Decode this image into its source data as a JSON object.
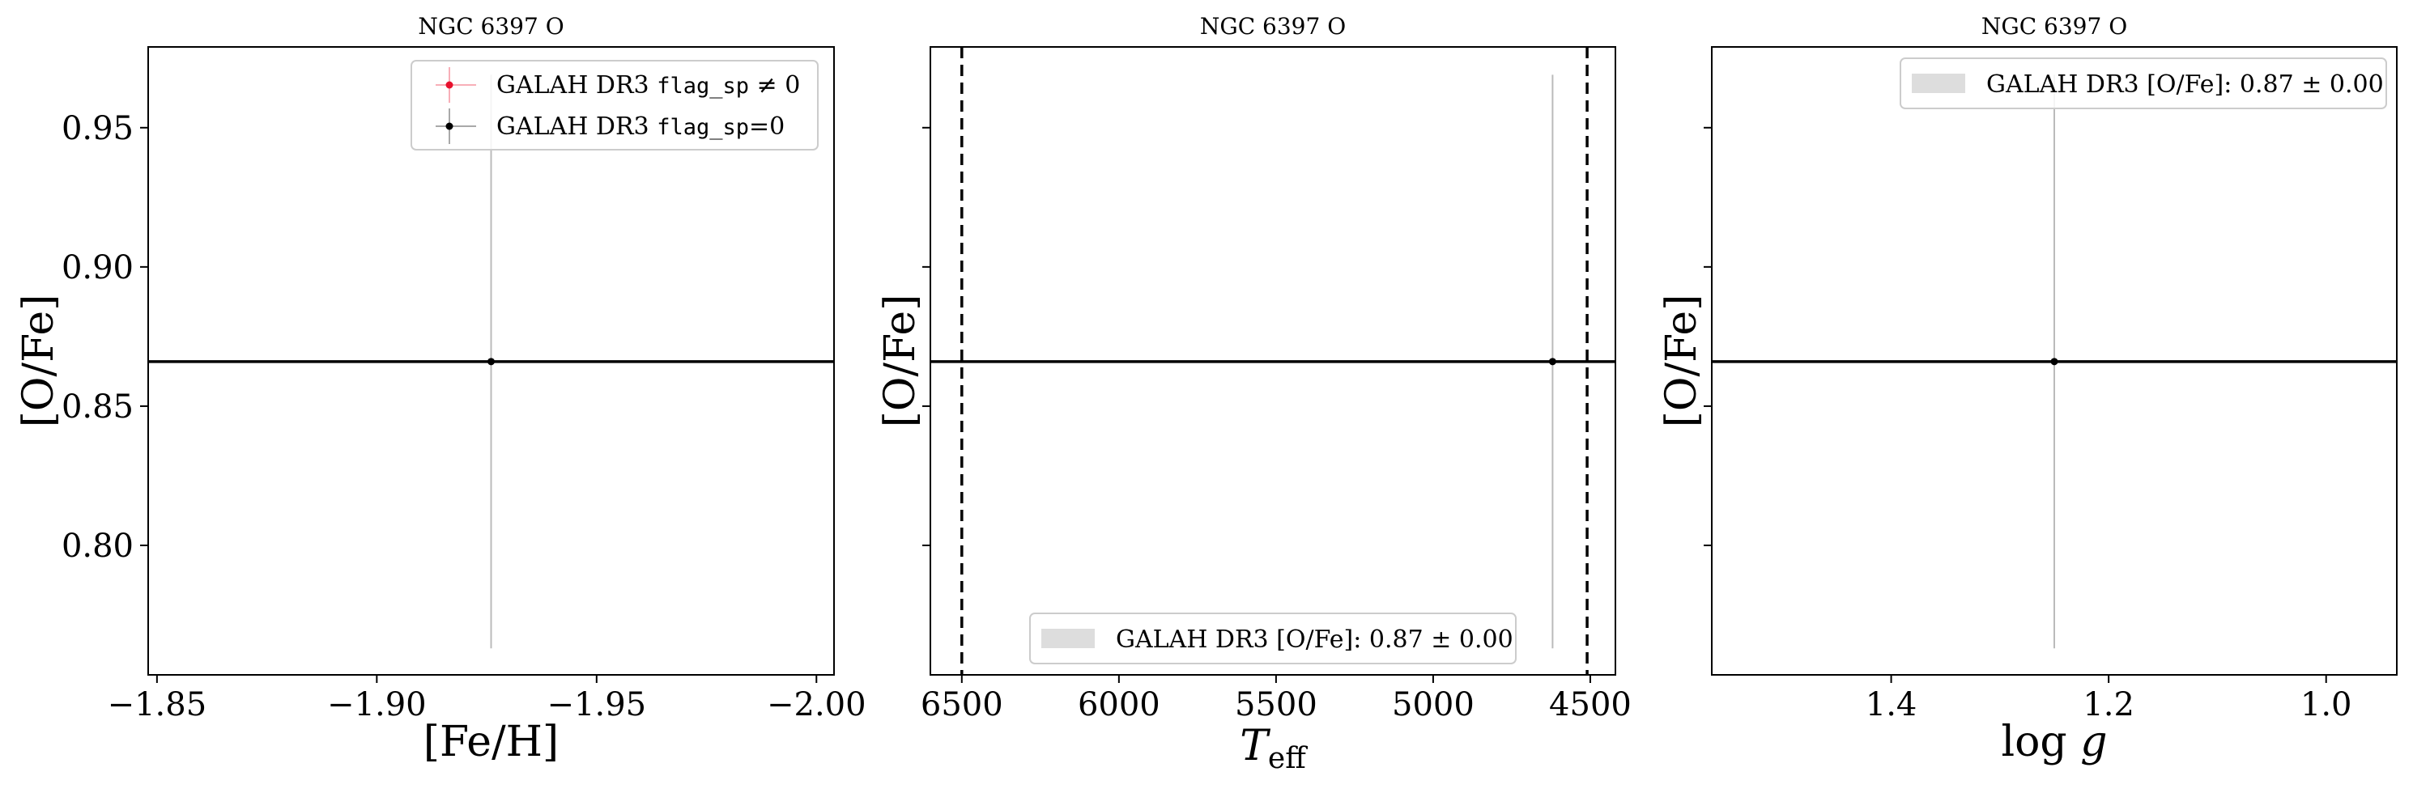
{
  "chart_data": [
    {
      "type": "scatter",
      "title": "NGC 6397 O",
      "xlabel": "[Fe/H]",
      "ylabel": "[O/Fe]",
      "xlim": [
        -1.848,
        -2.004
      ],
      "ylim": [
        0.7535,
        0.979
      ],
      "x_inverted": true,
      "xticks": [
        -1.85,
        -1.9,
        -1.95,
        -2.0
      ],
      "xtick_labels": [
        "−1.85",
        "−1.90",
        "−1.95",
        "−2.00"
      ],
      "yticks": [
        0.8,
        0.85,
        0.9,
        0.95
      ],
      "ytick_labels": [
        "0.80",
        "0.85",
        "0.90",
        "0.95"
      ],
      "grid": false,
      "legend_position": "top-right",
      "series": [
        {
          "name_prefix": "GALAH DR3 ",
          "name_code": "flag_sp",
          "name_suffix": " ≠ 0",
          "color": "#e8112d",
          "x": [],
          "y": [],
          "yerr": []
        },
        {
          "name_prefix": "GALAH DR3 ",
          "name_code": "flag_sp",
          "name_suffix": "=0",
          "color": "#000000",
          "x": [
            -1.926
          ],
          "y": [
            0.866
          ],
          "yerr": [
            0.103
          ],
          "errcolor": "#bbbbbb"
        }
      ],
      "hlines": [
        {
          "y": 0.866,
          "color": "#000000"
        }
      ]
    },
    {
      "type": "scatter",
      "title": "NGC 6397 O",
      "xlabel_main": "T",
      "xlabel_sub": "eff",
      "ylabel": "[O/Fe]",
      "xlim": [
        6600,
        4420
      ],
      "ylim": [
        0.7535,
        0.979
      ],
      "x_inverted": true,
      "xticks": [
        6500,
        6000,
        5500,
        5000,
        4500
      ],
      "xtick_labels": [
        "6500",
        "6000",
        "5500",
        "5000",
        "4500"
      ],
      "yticks": [
        0.8,
        0.85,
        0.9,
        0.95
      ],
      "grid": false,
      "legend_position": "lower-center",
      "legend_text": "GALAH DR3 [O/Fe]: 0.87 ± 0.00",
      "band_color": "#dddddd",
      "series": [
        {
          "color": "#000000",
          "x": [
            4620
          ],
          "y": [
            0.866
          ],
          "yerr": [
            0.103
          ],
          "errcolor": "#bbbbbb"
        }
      ],
      "vlines": [
        {
          "x": 6500,
          "style": "dashed"
        },
        {
          "x": 4510,
          "style": "dashed"
        }
      ],
      "hlines": [
        {
          "y": 0.866,
          "color": "#000000"
        }
      ]
    },
    {
      "type": "scatter",
      "title": "NGC 6397 O",
      "xlabel": "log g",
      "ylabel": "[O/Fe]",
      "xlim": [
        1.565,
        0.935
      ],
      "ylim": [
        0.7535,
        0.979
      ],
      "x_inverted": true,
      "xticks": [
        1.4,
        1.2,
        1.0
      ],
      "xtick_labels": [
        "1.4",
        "1.2",
        "1.0"
      ],
      "yticks": [
        0.8,
        0.85,
        0.9,
        0.95
      ],
      "grid": false,
      "legend_position": "top-right",
      "legend_text": "GALAH DR3 [O/Fe]: 0.87 ± 0.00",
      "band_color": "#dddddd",
      "series": [
        {
          "color": "#000000",
          "x": [
            1.25
          ],
          "y": [
            0.866
          ],
          "yerr": [
            0.103
          ],
          "errcolor": "#bbbbbb"
        }
      ],
      "hlines": [
        {
          "y": 0.866,
          "color": "#000000"
        }
      ]
    }
  ]
}
